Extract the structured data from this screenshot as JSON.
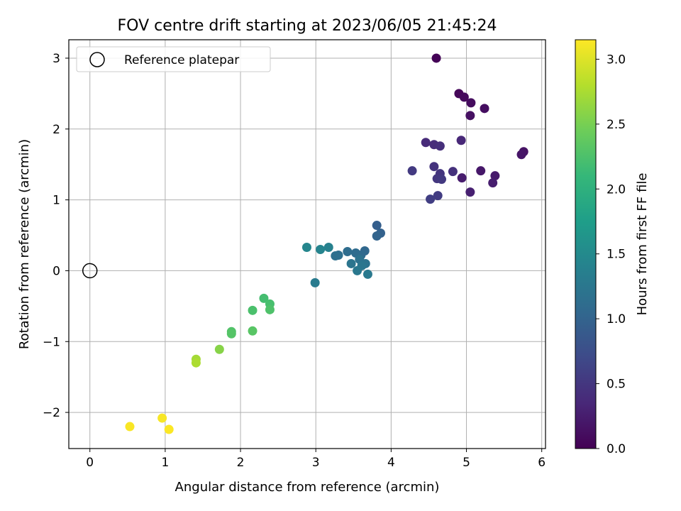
{
  "chart_data": {
    "type": "scatter",
    "title": "FOV centre drift starting at 2023/06/05 21:45:24",
    "xlabel": "Angular distance from reference (arcmin)",
    "ylabel": "Rotation from reference (arcmin)",
    "xlim": [
      -0.28,
      6.05
    ],
    "ylim": [
      -2.51,
      3.26
    ],
    "xticks": [
      0,
      1,
      2,
      3,
      4,
      5,
      6
    ],
    "xtick_labels": [
      "0",
      "1",
      "2",
      "3",
      "4",
      "5",
      "6"
    ],
    "yticks": [
      -2,
      -1,
      0,
      1,
      2,
      3
    ],
    "ytick_labels": [
      "−2",
      "−1",
      "0",
      "1",
      "2",
      "3"
    ],
    "grid": true,
    "legend": {
      "placement": "top-left",
      "entries": [
        "Reference platepar"
      ]
    },
    "reference_point": {
      "x": 0,
      "y": 0
    },
    "colorbar": {
      "label": "Hours from first FF file",
      "colormap": "viridis",
      "range": [
        0.0,
        3.15
      ],
      "ticks": [
        0.0,
        0.5,
        1.0,
        1.5,
        2.0,
        2.5,
        3.0
      ],
      "tick_labels": [
        "0.0",
        "0.5",
        "1.0",
        "1.5",
        "2.0",
        "2.5",
        "3.0"
      ]
    },
    "points": [
      {
        "x": 4.6,
        "y": 3.0,
        "c": 0.02
      },
      {
        "x": 4.9,
        "y": 2.5,
        "c": 0.05
      },
      {
        "x": 4.97,
        "y": 2.45,
        "c": 0.08
      },
      {
        "x": 5.06,
        "y": 2.37,
        "c": 0.1
      },
      {
        "x": 5.24,
        "y": 2.29,
        "c": 0.12
      },
      {
        "x": 5.05,
        "y": 2.19,
        "c": 0.14
      },
      {
        "x": 5.76,
        "y": 1.68,
        "c": 0.16
      },
      {
        "x": 5.73,
        "y": 1.64,
        "c": 0.18
      },
      {
        "x": 5.19,
        "y": 1.41,
        "c": 0.2
      },
      {
        "x": 5.38,
        "y": 1.34,
        "c": 0.22
      },
      {
        "x": 4.94,
        "y": 1.31,
        "c": 0.24
      },
      {
        "x": 5.35,
        "y": 1.24,
        "c": 0.26
      },
      {
        "x": 5.05,
        "y": 1.11,
        "c": 0.28
      },
      {
        "x": 4.93,
        "y": 1.84,
        "c": 0.35
      },
      {
        "x": 4.46,
        "y": 1.81,
        "c": 0.38
      },
      {
        "x": 4.57,
        "y": 1.78,
        "c": 0.4
      },
      {
        "x": 4.65,
        "y": 1.76,
        "c": 0.42
      },
      {
        "x": 4.82,
        "y": 1.4,
        "c": 0.44
      },
      {
        "x": 4.57,
        "y": 1.47,
        "c": 0.46
      },
      {
        "x": 4.65,
        "y": 1.37,
        "c": 0.48
      },
      {
        "x": 4.61,
        "y": 1.3,
        "c": 0.5
      },
      {
        "x": 4.67,
        "y": 1.29,
        "c": 0.52
      },
      {
        "x": 4.28,
        "y": 1.41,
        "c": 0.54
      },
      {
        "x": 4.62,
        "y": 1.06,
        "c": 0.56
      },
      {
        "x": 4.52,
        "y": 1.01,
        "c": 0.58
      },
      {
        "x": 3.81,
        "y": 0.64,
        "c": 0.95
      },
      {
        "x": 3.86,
        "y": 0.53,
        "c": 0.98
      },
      {
        "x": 3.81,
        "y": 0.49,
        "c": 1.0
      },
      {
        "x": 3.65,
        "y": 0.28,
        "c": 1.05
      },
      {
        "x": 3.6,
        "y": 0.22,
        "c": 1.08
      },
      {
        "x": 3.53,
        "y": 0.25,
        "c": 1.1
      },
      {
        "x": 3.42,
        "y": 0.27,
        "c": 1.12
      },
      {
        "x": 3.3,
        "y": 0.22,
        "c": 1.14
      },
      {
        "x": 3.26,
        "y": 0.21,
        "c": 1.16
      },
      {
        "x": 3.58,
        "y": 0.16,
        "c": 1.18
      },
      {
        "x": 3.66,
        "y": 0.1,
        "c": 1.2
      },
      {
        "x": 3.47,
        "y": 0.1,
        "c": 1.22
      },
      {
        "x": 3.61,
        "y": 0.07,
        "c": 1.24
      },
      {
        "x": 3.55,
        "y": 0.0,
        "c": 1.26
      },
      {
        "x": 3.69,
        "y": -0.05,
        "c": 1.28
      },
      {
        "x": 2.99,
        "y": -0.17,
        "c": 1.3
      },
      {
        "x": 3.17,
        "y": 0.33,
        "c": 1.38
      },
      {
        "x": 3.06,
        "y": 0.3,
        "c": 1.42
      },
      {
        "x": 2.88,
        "y": 0.33,
        "c": 1.45
      },
      {
        "x": 2.31,
        "y": -0.39,
        "c": 2.2
      },
      {
        "x": 2.39,
        "y": -0.47,
        "c": 2.22
      },
      {
        "x": 2.16,
        "y": -0.56,
        "c": 2.24
      },
      {
        "x": 2.39,
        "y": -0.55,
        "c": 2.26
      },
      {
        "x": 1.88,
        "y": -0.86,
        "c": 2.28
      },
      {
        "x": 1.88,
        "y": -0.89,
        "c": 2.3
      },
      {
        "x": 2.16,
        "y": -0.85,
        "c": 2.32
      },
      {
        "x": 1.72,
        "y": -1.11,
        "c": 2.58
      },
      {
        "x": 1.41,
        "y": -1.25,
        "c": 2.72
      },
      {
        "x": 1.41,
        "y": -1.3,
        "c": 2.76
      },
      {
        "x": 0.96,
        "y": -2.08,
        "c": 3.12
      },
      {
        "x": 0.53,
        "y": -2.2,
        "c": 3.13
      },
      {
        "x": 1.05,
        "y": -2.24,
        "c": 3.14
      }
    ]
  }
}
